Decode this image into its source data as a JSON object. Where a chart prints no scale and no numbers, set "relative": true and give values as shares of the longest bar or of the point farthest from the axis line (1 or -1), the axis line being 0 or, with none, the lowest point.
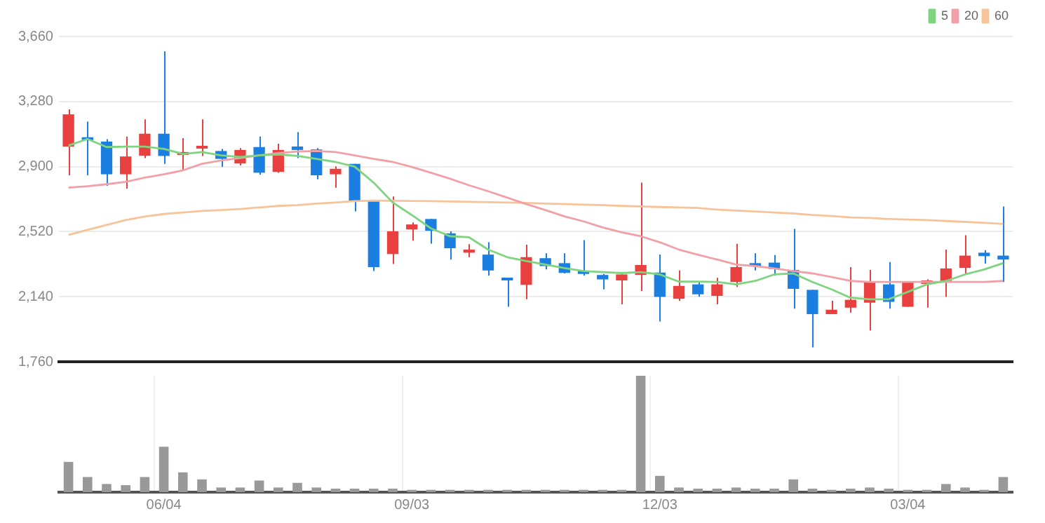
{
  "chart_data": [
    {
      "type": "candlestick",
      "categories": [
        null,
        null,
        null,
        null,
        null,
        null,
        null,
        null,
        null,
        null,
        null,
        null,
        null,
        null,
        null,
        null,
        null,
        null,
        null,
        null,
        null,
        null,
        null,
        null,
        null,
        null,
        null,
        null,
        null,
        null,
        null,
        null,
        null,
        null,
        null,
        null,
        null,
        null,
        null,
        null,
        null,
        null,
        null,
        null,
        null,
        null,
        null,
        null,
        null,
        null
      ],
      "ohlc": [
        [
          3017,
          3234,
          2849,
          3205
        ],
        [
          3064,
          3162,
          2849,
          3055
        ],
        [
          3046,
          3060,
          2788,
          2855
        ],
        [
          2855,
          3075,
          2771,
          2959
        ],
        [
          2963,
          3176,
          2950,
          3092
        ],
        [
          3092,
          3573,
          2916,
          2962
        ],
        [
          2968,
          3066,
          2881,
          2985
        ],
        [
          3005,
          3176,
          2962,
          3020
        ],
        [
          2991,
          3003,
          2898,
          2945
        ],
        [
          2919,
          3008,
          2907,
          2997
        ],
        [
          3014,
          3075,
          2852,
          2864
        ],
        [
          2869,
          3034,
          2864,
          2997
        ],
        [
          3017,
          3101,
          2950,
          2997
        ],
        [
          3000,
          3008,
          2826,
          2849
        ],
        [
          2855,
          2901,
          2777,
          2887
        ],
        [
          2916,
          2916,
          2638,
          2701
        ],
        [
          2699,
          2699,
          2290,
          2313
        ],
        [
          2389,
          2725,
          2331,
          2522
        ],
        [
          2533,
          2574,
          2467,
          2562
        ],
        [
          2594,
          2594,
          2450,
          2525
        ],
        [
          2510,
          2522,
          2357,
          2423
        ],
        [
          2397,
          2447,
          2371,
          2415
        ],
        [
          2386,
          2458,
          2264,
          2293
        ],
        [
          2250,
          2250,
          2081,
          2235
        ],
        [
          2209,
          2444,
          2125,
          2371
        ],
        [
          2365,
          2394,
          2299,
          2319
        ],
        [
          2336,
          2394,
          2276,
          2279
        ],
        [
          2287,
          2470,
          2264,
          2273
        ],
        [
          2267,
          2273,
          2183,
          2241
        ],
        [
          2235,
          2270,
          2096,
          2270
        ],
        [
          2267,
          2806,
          2174,
          2325
        ],
        [
          2281,
          2386,
          1995,
          2139
        ],
        [
          2128,
          2293,
          2116,
          2203
        ],
        [
          2212,
          2230,
          2140,
          2154
        ],
        [
          2145,
          2250,
          2096,
          2212
        ],
        [
          2226,
          2449,
          2197,
          2313
        ],
        [
          2336,
          2394,
          2293,
          2319
        ],
        [
          2339,
          2383,
          2264,
          2302
        ],
        [
          2296,
          2536,
          2070,
          2186
        ],
        [
          2180,
          2180,
          1844,
          2038
        ],
        [
          2038,
          2116,
          2038,
          2064
        ],
        [
          2076,
          2313,
          2047,
          2122
        ],
        [
          2105,
          2296,
          1942,
          2226
        ],
        [
          2212,
          2342,
          2070,
          2110
        ],
        [
          2081,
          2226,
          2081,
          2223
        ],
        [
          2215,
          2241,
          2076,
          2235
        ],
        [
          2232,
          2415,
          2139,
          2305
        ],
        [
          2308,
          2499,
          2276,
          2380
        ],
        [
          2397,
          2412,
          2333,
          2377
        ],
        [
          2380,
          2667,
          2226,
          2357
        ]
      ],
      "colors": [
        "#e8403f",
        "#1a7fe0",
        "#1a7fe0",
        "#e8403f",
        "#e8403f",
        "#1a7fe0",
        "#e8403f",
        "#e8403f",
        "#1a7fe0",
        "#e8403f",
        "#1a7fe0",
        "#e8403f",
        "#1a7fe0",
        "#1a7fe0",
        "#e8403f",
        "#1a7fe0",
        "#1a7fe0",
        "#e8403f",
        "#e8403f",
        "#1a7fe0",
        "#1a7fe0",
        "#e8403f",
        "#1a7fe0",
        "#1a7fe0",
        "#e8403f",
        "#1a7fe0",
        "#1a7fe0",
        "#1a7fe0",
        "#1a7fe0",
        "#e8403f",
        "#e8403f",
        "#1a7fe0",
        "#e8403f",
        "#1a7fe0",
        "#e8403f",
        "#e8403f",
        "#1a7fe0",
        "#1a7fe0",
        "#1a7fe0",
        "#1a7fe0",
        "#e8403f",
        "#e8403f",
        "#e8403f",
        "#1a7fe0",
        "#e8403f",
        "#e8403f",
        "#e8403f",
        "#e8403f",
        "#1a7fe0",
        "#1a7fe0"
      ],
      "series": [
        {
          "type": "line",
          "name": "5",
          "color": "#7fd47f",
          "values": [
            3023,
            3061,
            3014,
            3017,
            3017,
            3003,
            2974,
            2985,
            2965,
            2956,
            2965,
            2971,
            2962,
            2945,
            2927,
            2900,
            2806,
            2690,
            2617,
            2539,
            2493,
            2487,
            2415,
            2371,
            2348,
            2328,
            2307,
            2290,
            2284,
            2278,
            2284,
            2270,
            2228,
            2228,
            2226,
            2212,
            2232,
            2270,
            2276,
            2226,
            2183,
            2134,
            2125,
            2125,
            2168,
            2212,
            2232,
            2270,
            2299,
            2336
          ]
        },
        {
          "type": "line",
          "name": "20",
          "color": "#f2a0a8",
          "values": [
            2777,
            2785,
            2797,
            2811,
            2835,
            2855,
            2878,
            2916,
            2936,
            2950,
            2965,
            2979,
            2988,
            2991,
            2985,
            2965,
            2945,
            2927,
            2898,
            2864,
            2829,
            2791,
            2756,
            2719,
            2681,
            2646,
            2609,
            2580,
            2545,
            2516,
            2493,
            2458,
            2415,
            2385,
            2357,
            2328,
            2319,
            2305,
            2290,
            2276,
            2255,
            2232,
            2226,
            2226,
            2226,
            2226,
            2226,
            2226,
            2226,
            2232
          ]
        },
        {
          "type": "line",
          "name": "60",
          "color": "#f7c49a",
          "values": [
            2501,
            2530,
            2559,
            2588,
            2608,
            2623,
            2632,
            2641,
            2646,
            2652,
            2661,
            2670,
            2675,
            2684,
            2690,
            2698,
            2701,
            2700,
            2699,
            2698,
            2696,
            2694,
            2692,
            2690,
            2688,
            2684,
            2681,
            2678,
            2675,
            2670,
            2667,
            2664,
            2661,
            2658,
            2649,
            2643,
            2638,
            2632,
            2626,
            2617,
            2611,
            2603,
            2600,
            2594,
            2591,
            2588,
            2582,
            2577,
            2571,
            2565
          ]
        }
      ],
      "ylim": [
        1760,
        3660
      ],
      "yticks": [
        {
          "value": 1760,
          "label": "1,760"
        },
        {
          "value": 2140,
          "label": "2,140"
        },
        {
          "value": 2520,
          "label": "2,520"
        },
        {
          "value": 2900,
          "label": "2,900"
        },
        {
          "value": 3280,
          "label": "3,280"
        },
        {
          "value": 3660,
          "label": "3,660"
        }
      ],
      "grid": "y",
      "legend": "top right",
      "marker": "none",
      "tick_labels": "y"
    },
    {
      "type": "bar",
      "categories": [
        null,
        null,
        null,
        null,
        null,
        "06/04",
        null,
        null,
        null,
        null,
        null,
        null,
        null,
        null,
        null,
        null,
        null,
        null,
        "09/03",
        null,
        null,
        null,
        null,
        null,
        null,
        null,
        null,
        null,
        null,
        null,
        null,
        "12/03",
        null,
        null,
        null,
        null,
        null,
        null,
        null,
        null,
        null,
        null,
        null,
        null,
        "03/04",
        null,
        null,
        null,
        null,
        null
      ],
      "values": [
        0.26,
        0.13,
        0.07,
        0.06,
        0.13,
        0.39,
        0.17,
        0.11,
        0.04,
        0.04,
        0.1,
        0.04,
        0.08,
        0.04,
        0.03,
        0.03,
        0.03,
        0.03,
        0.02,
        0.02,
        0.02,
        0.02,
        0.02,
        0.02,
        0.02,
        0.02,
        0.02,
        0.02,
        0.02,
        0.02,
        1,
        0.14,
        0.04,
        0.03,
        0.03,
        0.04,
        0.03,
        0.03,
        0.11,
        0.03,
        0.02,
        0.03,
        0.04,
        0.03,
        0.02,
        0.02,
        0.07,
        0.04,
        0.02,
        0.13
      ],
      "color": "#999999",
      "relative": true,
      "grid": "x",
      "tick_labels": "x"
    }
  ]
}
